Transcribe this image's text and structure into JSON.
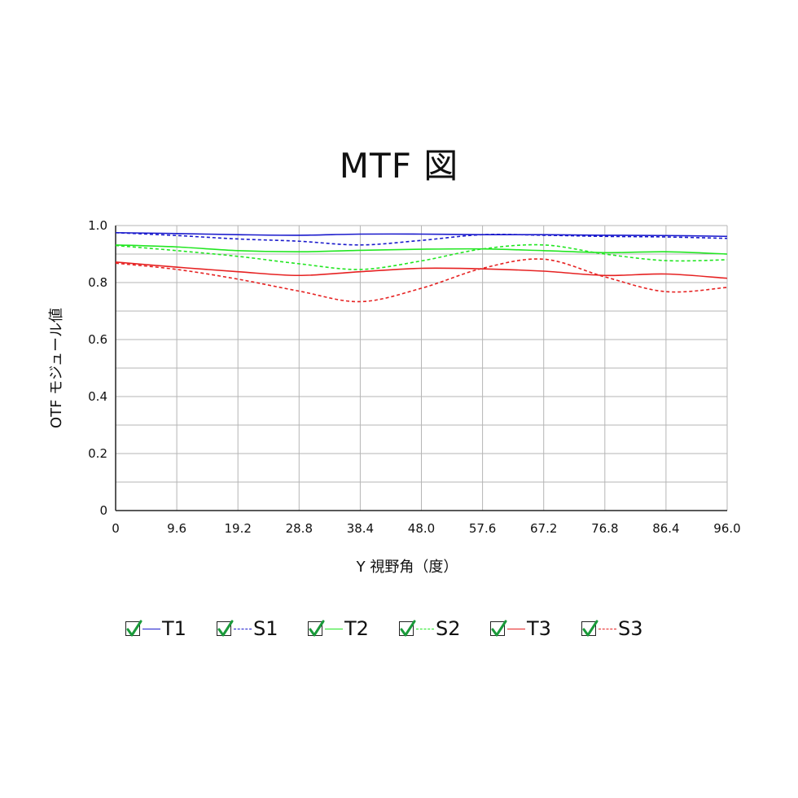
{
  "chart_data": {
    "type": "line",
    "title": "MTF 図",
    "xlabel": "Y 視野角（度）",
    "ylabel": "OTF モジュール値",
    "xlim": [
      0,
      96
    ],
    "ylim": [
      0,
      1.0
    ],
    "x_ticks": [
      "0",
      "9.6",
      "19.2",
      "28.8",
      "38.4",
      "48.0",
      "57.6",
      "67.2",
      "76.8",
      "86.4",
      "96.0"
    ],
    "y_ticks": [
      "0",
      "0.2",
      "0.4",
      "0.6",
      "0.8",
      "1.0"
    ],
    "grid": true,
    "legend_position": "bottom",
    "x": [
      0,
      9.6,
      19.2,
      28.8,
      38.4,
      48.0,
      57.6,
      67.2,
      76.8,
      86.4,
      96.0
    ],
    "series": [
      {
        "name": "T1",
        "color": "#1a1acc",
        "style": "solid",
        "values": [
          0.975,
          0.972,
          0.968,
          0.966,
          0.97,
          0.97,
          0.968,
          0.968,
          0.966,
          0.965,
          0.962
        ]
      },
      {
        "name": "S1",
        "color": "#1a1acc",
        "style": "dashed",
        "values": [
          0.975,
          0.965,
          0.953,
          0.945,
          0.932,
          0.948,
          0.968,
          0.966,
          0.962,
          0.96,
          0.955
        ]
      },
      {
        "name": "T2",
        "color": "#22e622",
        "style": "solid",
        "values": [
          0.932,
          0.925,
          0.912,
          0.908,
          0.913,
          0.917,
          0.918,
          0.912,
          0.905,
          0.908,
          0.9
        ]
      },
      {
        "name": "S2",
        "color": "#22e622",
        "style": "dashed",
        "values": [
          0.93,
          0.912,
          0.892,
          0.866,
          0.846,
          0.876,
          0.918,
          0.932,
          0.9,
          0.877,
          0.88
        ]
      },
      {
        "name": "T3",
        "color": "#e62222",
        "style": "solid",
        "values": [
          0.872,
          0.854,
          0.838,
          0.825,
          0.838,
          0.85,
          0.848,
          0.84,
          0.825,
          0.83,
          0.815
        ]
      },
      {
        "name": "S3",
        "color": "#e62222",
        "style": "dashed",
        "values": [
          0.868,
          0.846,
          0.812,
          0.77,
          0.733,
          0.78,
          0.85,
          0.882,
          0.82,
          0.768,
          0.783
        ]
      }
    ]
  }
}
